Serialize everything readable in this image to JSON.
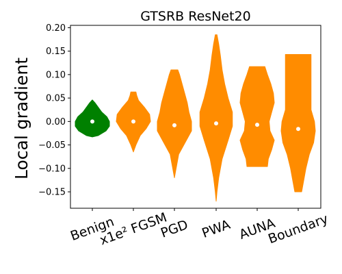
{
  "chart_data": {
    "type": "violin",
    "title": "GTSRB ResNet20",
    "xlabel": "",
    "ylabel": "Local gradient",
    "ylim": [
      -0.185,
      0.205
    ],
    "yticks": [
      0.2,
      0.15,
      0.1,
      0.05,
      0.0,
      -0.05,
      -0.1,
      -0.15
    ],
    "ytick_labels": [
      "0.20",
      "0.15",
      "0.10",
      "0.05",
      "0.00",
      "−0.05",
      "−0.10",
      "−0.15"
    ],
    "colors": {
      "benign": "#008000",
      "attack": "#ff8c00",
      "median_marker": "#ffffff"
    },
    "categories": [
      {
        "label": "Benign",
        "color": "#008000",
        "median": 0.0,
        "profile": [
          [
            -0.033,
            0.0
          ],
          [
            -0.03,
            0.35
          ],
          [
            -0.02,
            0.8
          ],
          [
            -0.01,
            1.0
          ],
          [
            0.0,
            1.0
          ],
          [
            0.01,
            0.85
          ],
          [
            0.02,
            0.55
          ],
          [
            0.03,
            0.35
          ],
          [
            0.04,
            0.15
          ],
          [
            0.046,
            0.0
          ]
        ]
      },
      {
        "label": "x1e² FGSM",
        "color": "#ff8c00",
        "median": 0.0,
        "profile": [
          [
            -0.065,
            0.0
          ],
          [
            -0.05,
            0.15
          ],
          [
            -0.03,
            0.4
          ],
          [
            -0.015,
            0.75
          ],
          [
            0.0,
            1.0
          ],
          [
            0.015,
            0.95
          ],
          [
            0.03,
            0.65
          ],
          [
            0.045,
            0.3
          ],
          [
            0.055,
            0.2
          ],
          [
            0.063,
            0.15
          ]
        ]
      },
      {
        "label": "PGD",
        "color": "#ff8c00",
        "median": -0.008,
        "profile": [
          [
            -0.12,
            0.0
          ],
          [
            -0.1,
            0.1
          ],
          [
            -0.07,
            0.25
          ],
          [
            -0.04,
            0.7
          ],
          [
            -0.02,
            1.0
          ],
          [
            0.0,
            1.0
          ],
          [
            0.02,
            0.85
          ],
          [
            0.04,
            0.75
          ],
          [
            0.06,
            0.6
          ],
          [
            0.08,
            0.45
          ],
          [
            0.1,
            0.3
          ],
          [
            0.11,
            0.2
          ]
        ]
      },
      {
        "label": "PWA",
        "color": "#ff8c00",
        "median": -0.004,
        "profile": [
          [
            -0.17,
            0.0
          ],
          [
            -0.15,
            0.05
          ],
          [
            -0.12,
            0.15
          ],
          [
            -0.08,
            0.35
          ],
          [
            -0.04,
            0.7
          ],
          [
            -0.01,
            0.95
          ],
          [
            0.02,
            0.95
          ],
          [
            0.05,
            0.7
          ],
          [
            0.08,
            0.5
          ],
          [
            0.11,
            0.35
          ],
          [
            0.14,
            0.25
          ],
          [
            0.165,
            0.15
          ],
          [
            0.185,
            0.05
          ]
        ]
      },
      {
        "label": "AUNA",
        "color": "#ff8c00",
        "median": -0.007,
        "profile": [
          [
            -0.096,
            0.6
          ],
          [
            -0.08,
            0.65
          ],
          [
            -0.06,
            0.85
          ],
          [
            -0.04,
            1.0
          ],
          [
            -0.02,
            0.75
          ],
          [
            0.0,
            0.7
          ],
          [
            0.02,
            0.85
          ],
          [
            0.04,
            1.0
          ],
          [
            0.06,
            0.95
          ],
          [
            0.08,
            0.8
          ],
          [
            0.1,
            0.6
          ],
          [
            0.117,
            0.45
          ]
        ]
      },
      {
        "label": "Boundary",
        "color": "#ff8c00",
        "median": -0.016,
        "profile": [
          [
            -0.15,
            0.2
          ],
          [
            -0.13,
            0.3
          ],
          [
            -0.1,
            0.45
          ],
          [
            -0.07,
            0.65
          ],
          [
            -0.045,
            0.9
          ],
          [
            -0.02,
            1.0
          ],
          [
            0.0,
            0.95
          ],
          [
            0.025,
            0.75
          ],
          [
            0.05,
            0.75
          ],
          [
            0.08,
            0.75
          ],
          [
            0.11,
            0.75
          ],
          [
            0.143,
            0.75
          ]
        ]
      }
    ]
  }
}
